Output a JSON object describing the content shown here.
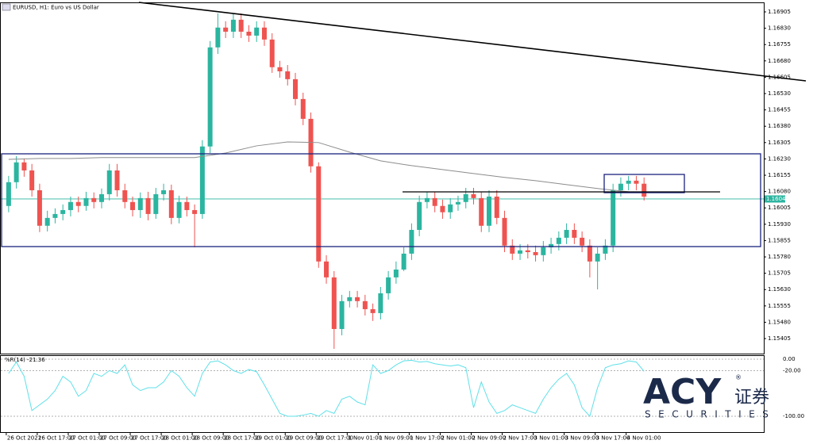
{
  "chart_data": {
    "type": "candlestick",
    "title": "EURUSD, H1:  Euro vs US Dollar",
    "categories": [
      "26 Oct 2021",
      null,
      null,
      null,
      "26 Oct 17:00",
      null,
      null,
      null,
      "27 Oct 01:00",
      null,
      null,
      null,
      "27 Oct 09:00",
      null,
      null,
      null,
      "27 Oct 17:00",
      null,
      null,
      null,
      "28 Oct 01:00",
      null,
      null,
      null,
      "28 Oct 09:00",
      null,
      null,
      null,
      "28 Oct 17:00",
      null,
      null,
      null,
      "29 Oct 01:00",
      null,
      null,
      null,
      "29 Oct 09:00",
      null,
      null,
      null,
      "29 Oct 17:00",
      null,
      null,
      null,
      "1 Nov 01:00",
      null,
      null,
      null,
      "1 Nov 09:00",
      null,
      null,
      null,
      "1 Nov 17:00",
      null,
      null,
      null,
      "2 Nov 01:00",
      null,
      null,
      null,
      "2 Nov 09:00",
      null,
      null,
      null,
      "2 Nov 17:00",
      null,
      null,
      null,
      "3 Nov 01:00",
      null,
      null,
      null,
      "3 Nov 09:00",
      null,
      null,
      null,
      "3 Nov 17:00",
      null,
      null,
      null,
      "4 Nov 01:00",
      null,
      null
    ],
    "open": [
      1.16014,
      1.16123,
      1.16214,
      1.16177,
      1.16086,
      1.15923,
      1.15959,
      1.15977,
      1.15995,
      1.16032,
      1.16014,
      1.1605,
      1.16032,
      1.16068,
      1.16177,
      1.16086,
      1.16032,
      1.15995,
      1.1605,
      1.15977,
      1.16068,
      1.16086,
      1.15959,
      1.16032,
      1.15995,
      1.15977,
      1.16287,
      1.16742,
      1.16833,
      1.16814,
      1.16869,
      1.16814,
      1.16796,
      1.16833,
      1.16778,
      1.16651,
      1.16632,
      1.16596,
      1.16505,
      1.16414,
      1.16196,
      1.15759,
      1.15686,
      1.15449,
      1.15577,
      1.15595,
      1.15577,
      1.1554,
      1.15522,
      1.15613,
      1.15686,
      1.15722,
      1.15795,
      1.15904,
      1.16032,
      1.1605,
      1.16014,
      1.15985,
      1.16021,
      1.16032,
      1.16068,
      1.1605,
      1.15923,
      1.16057,
      1.15959,
      1.15832,
      1.15795,
      1.1581,
      1.15802,
      1.15788,
      1.15824,
      1.15839,
      1.15868,
      1.15904,
      1.15868,
      1.15832,
      1.15759,
      1.15795,
      1.15832,
      1.16086,
      1.16116,
      1.1613,
      1.16116
    ],
    "high": [
      1.16152,
      1.16243,
      1.16232,
      1.16207,
      1.16116,
      1.15992,
      1.16003,
      1.16021,
      1.16057,
      1.16057,
      1.16079,
      1.16076,
      1.16094,
      1.16207,
      1.16207,
      1.16116,
      1.16057,
      1.16076,
      1.16079,
      1.16097,
      1.16116,
      1.16112,
      1.16061,
      1.16057,
      1.16021,
      1.16316,
      1.16771,
      1.16898,
      1.16862,
      1.16898,
      1.16898,
      1.16844,
      1.16862,
      1.16862,
      1.16807,
      1.1668,
      1.16661,
      1.16625,
      1.16534,
      1.16443,
      1.16214,
      1.15788,
      1.15715,
      1.15606,
      1.15624,
      1.15624,
      1.15606,
      1.15566,
      1.15642,
      1.15715,
      1.15759,
      1.15824,
      1.15934,
      1.16061,
      1.16079,
      1.16079,
      1.16043,
      1.1605,
      1.16061,
      1.16097,
      1.16097,
      1.16079,
      1.16086,
      1.16086,
      1.15992,
      1.15861,
      1.15839,
      1.15839,
      1.15832,
      1.15853,
      1.15868,
      1.15897,
      1.15934,
      1.15934,
      1.15897,
      1.15861,
      1.15824,
      1.15861,
      1.16116,
      1.16145,
      1.16152,
      1.16152,
      1.16145
    ],
    "low": [
      1.15985,
      1.16094,
      1.16148,
      1.16057,
      1.15894,
      1.15897,
      1.15934,
      1.15948,
      1.15966,
      1.15985,
      1.15992,
      1.16003,
      1.16003,
      1.16039,
      1.16057,
      1.16003,
      1.15966,
      1.15959,
      1.15948,
      1.15955,
      1.16039,
      1.1593,
      1.15934,
      1.15966,
      1.15824,
      1.15955,
      1.16257,
      1.16712,
      1.16785,
      1.16785,
      1.16785,
      1.16767,
      1.16767,
      1.16749,
      1.16625,
      1.16603,
      1.16567,
      1.16476,
      1.16385,
      1.16167,
      1.1573,
      1.15657,
      1.15358,
      1.1542,
      1.15548,
      1.15548,
      1.15511,
      1.15486,
      1.15493,
      1.15584,
      1.15657,
      1.15715,
      1.15766,
      1.15875,
      1.16003,
      1.15985,
      1.15955,
      1.15955,
      1.15992,
      1.16003,
      1.16021,
      1.15894,
      1.15894,
      1.1593,
      1.15802,
      1.15766,
      1.15766,
      1.15773,
      1.15759,
      1.15759,
      1.15795,
      1.1581,
      1.15839,
      1.15839,
      1.15802,
      1.15686,
      1.15631,
      1.15766,
      1.15802,
      1.16057,
      1.16086,
      1.16086,
      1.16039
    ],
    "close": [
      1.16123,
      1.16214,
      1.16177,
      1.16086,
      1.15923,
      1.15959,
      1.15977,
      1.15995,
      1.16032,
      1.16014,
      1.1605,
      1.16032,
      1.16068,
      1.16177,
      1.16086,
      1.16032,
      1.15995,
      1.1605,
      1.15977,
      1.16068,
      1.16086,
      1.15959,
      1.16032,
      1.15995,
      1.15977,
      1.16287,
      1.16742,
      1.16833,
      1.16814,
      1.16869,
      1.16814,
      1.16796,
      1.16833,
      1.16778,
      1.16651,
      1.16632,
      1.16596,
      1.16505,
      1.16414,
      1.16196,
      1.15759,
      1.15686,
      1.15449,
      1.15577,
      1.15595,
      1.15577,
      1.1554,
      1.15522,
      1.15613,
      1.15686,
      1.15722,
      1.15795,
      1.15904,
      1.16032,
      1.1605,
      1.16014,
      1.15985,
      1.16021,
      1.16032,
      1.16068,
      1.1605,
      1.15923,
      1.16057,
      1.15959,
      1.15832,
      1.15795,
      1.1581,
      1.15802,
      1.15788,
      1.15824,
      1.15839,
      1.15868,
      1.15904,
      1.15868,
      1.15832,
      1.15759,
      1.15795,
      1.15832,
      1.16086,
      1.16116,
      1.1613,
      1.16116,
      1.16057
    ],
    "up_color": "#2bb5a0",
    "down_color": "#ef5350",
    "ma": {
      "index": [
        0,
        4,
        8,
        12,
        16,
        20,
        24,
        28,
        32,
        36,
        40,
        44,
        48,
        52,
        56,
        60,
        64,
        68,
        72,
        76,
        80
      ],
      "values": [
        1.16228,
        1.16232,
        1.16232,
        1.16236,
        1.16236,
        1.16236,
        1.16236,
        1.16257,
        1.1629,
        1.16308,
        1.16305,
        1.16261,
        1.16221,
        1.16199,
        1.16181,
        1.16163,
        1.16145,
        1.1613,
        1.16112,
        1.16094,
        1.16079
      ],
      "color": "#8c8c8c"
    },
    "bid": {
      "value": 1.16046,
      "label": "1.16046"
    },
    "bid_color": "#2bb5a0",
    "ylim": [
      1.15336,
      1.16945
    ],
    "yticks": [
      1.16905,
      {
        "value": 1.1683,
        "label": "1.16830"
      },
      1.16755,
      {
        "value": 1.1668,
        "label": "1.16680"
      },
      1.16605,
      {
        "value": 1.1653,
        "label": "1.16530"
      },
      1.16455,
      {
        "value": 1.1638,
        "label": "1.16380"
      },
      1.16305,
      {
        "value": 1.1623,
        "label": "1.16230"
      },
      1.16155,
      {
        "value": 1.1608,
        "label": "1.16080"
      },
      1.16005,
      {
        "value": 1.1593,
        "label": "1.15930"
      },
      1.15855,
      {
        "value": 1.1578,
        "label": "1.15780"
      },
      1.15705,
      {
        "value": 1.1563,
        "label": "1.15630"
      },
      1.15555,
      {
        "value": 1.1548,
        "label": "1.15480"
      },
      1.15405
    ],
    "indicator": {
      "title": "%R(14) -21.36",
      "color": "#5fe0e8",
      "values": [
        -25,
        -5,
        -30,
        -90,
        -80,
        -70,
        -55,
        -30,
        -40,
        -65,
        -55,
        -25,
        -30,
        -20,
        -25,
        -10,
        -45,
        -55,
        -50,
        -50,
        -40,
        -20,
        -30,
        -50,
        -65,
        -25,
        -5,
        -3,
        -10,
        -20,
        -25,
        -18,
        -22,
        -45,
        -70,
        -95,
        -100,
        -100,
        -98,
        -95,
        -100,
        -90,
        -95,
        -70,
        -65,
        -75,
        -80,
        -10,
        -25,
        -20,
        -10,
        -3,
        -2,
        -5,
        -4,
        -8,
        -10,
        -12,
        -10,
        -15,
        -85,
        -40,
        -75,
        -95,
        -90,
        -80,
        -85,
        -90,
        -95,
        -70,
        -50,
        -35,
        -25,
        -45,
        -85,
        -100,
        -50,
        -15,
        -10,
        -8,
        -3,
        -5,
        -21.36
      ],
      "ylim": [
        -100,
        0
      ],
      "yticks": [
        {
          "value": 0,
          "label": "0.00"
        },
        {
          "value": -20,
          "label": "-20.00"
        },
        {
          "value": -100,
          "label": "-100.00"
        }
      ]
    },
    "logo": {
      "brand": "ACY",
      "chinese": "证券",
      "sub": "SECURITIES",
      "mark": "®"
    }
  }
}
